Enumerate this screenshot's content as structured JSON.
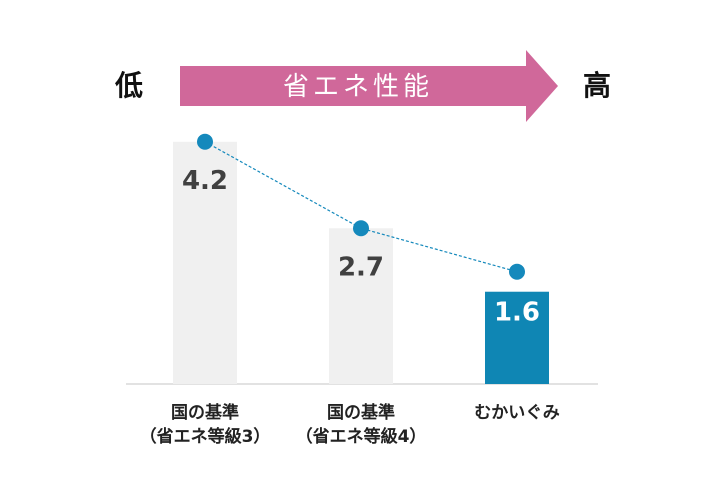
{
  "header": {
    "low_label": "低",
    "high_label": "高",
    "arrow_text": "省エネ性能"
  },
  "colors": {
    "arrow": "#d0689a",
    "bar_default": "#f0f0f0",
    "bar_highlight": "#0f86b4",
    "marker": "#1589bc",
    "value_dark": "#404040",
    "value_light": "#ffffff"
  },
  "chart_data": {
    "type": "bar",
    "categories": [
      [
        "国の基準",
        "（省エネ等級3）"
      ],
      [
        "国の基準",
        "（省エネ等級4）"
      ],
      [
        "むかいぐみ"
      ]
    ],
    "values": [
      4.2,
      2.7,
      1.6
    ],
    "value_labels": [
      "4.2",
      "2.7",
      "1.6"
    ],
    "highlight_index": 2,
    "trend_line": true,
    "ylim": [
      0,
      4.3
    ],
    "grid": false
  }
}
